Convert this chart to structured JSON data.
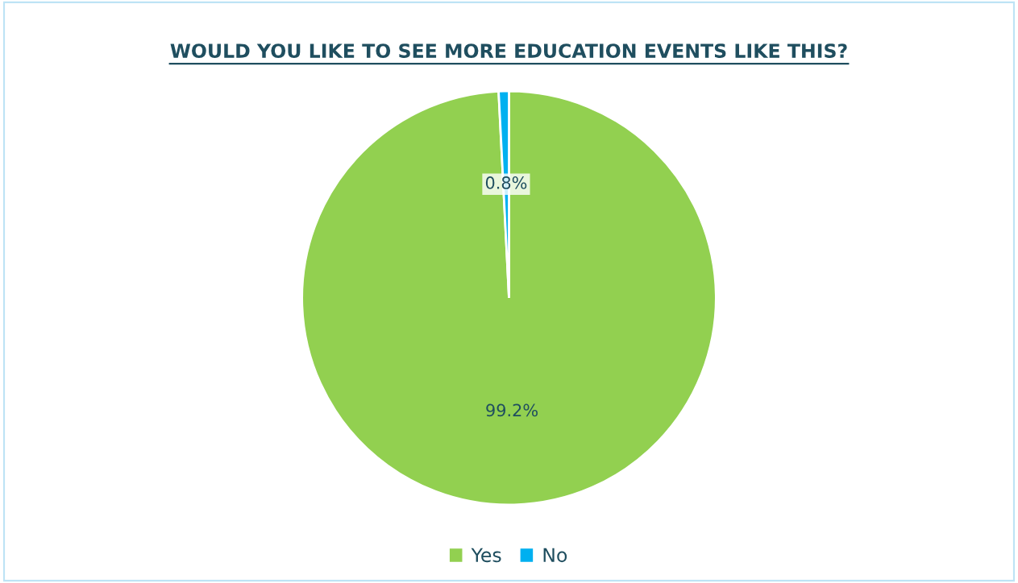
{
  "chart_data": {
    "type": "pie",
    "title": "WOULD YOU LIKE TO SEE MORE EDUCATION EVENTS LIKE THIS?",
    "categories": [
      "Yes",
      "No"
    ],
    "values": [
      99.2,
      0.8
    ],
    "colors": [
      "#92d050",
      "#00b0f0"
    ],
    "value_labels": [
      "99.2%",
      "0.8%"
    ],
    "legend": "bottom"
  }
}
